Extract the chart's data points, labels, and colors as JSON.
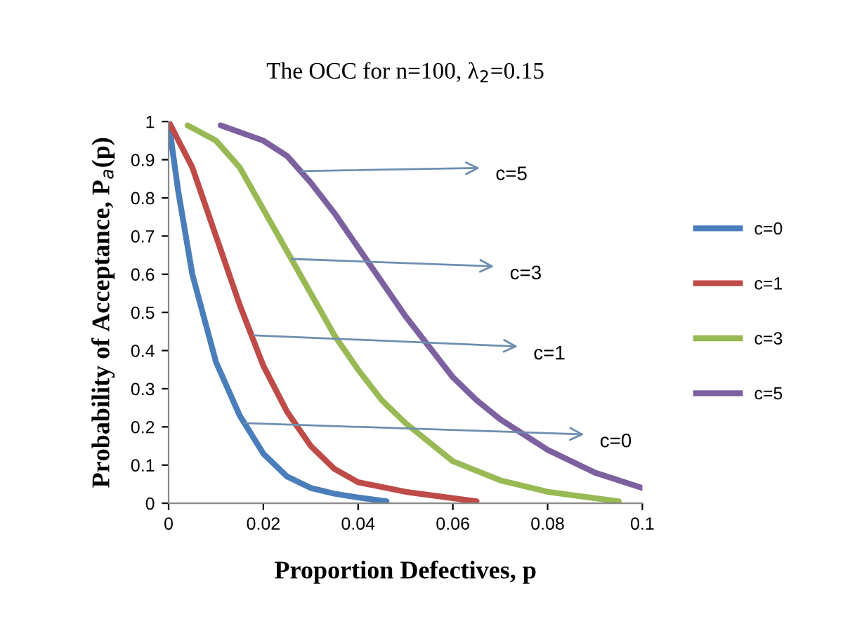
{
  "chart_data": {
    "type": "line",
    "title": "The OCC for n=100, λ$_{2}$=0.15",
    "xlabel": "Proportion Defectives, p",
    "ylabel": "Probability of Acceptance, P$_{a}$(p)",
    "xlim": [
      0,
      0.1
    ],
    "ylim": [
      0,
      1
    ],
    "xticks": [
      0,
      0.02,
      0.04,
      0.06,
      0.08,
      0.1
    ],
    "yticks": [
      0,
      0.1,
      0.2,
      0.3,
      0.4,
      0.5,
      0.6,
      0.7,
      0.8,
      0.9,
      1
    ],
    "grid": false,
    "legend": "right",
    "marker": "none",
    "line_style": "solid",
    "series": [
      {
        "name": "c=0",
        "color": "#4a7ebb",
        "x": [
          0,
          0.002,
          0.005,
          0.01,
          0.015,
          0.02,
          0.025,
          0.03,
          0.035,
          0.04,
          0.046
        ],
        "values": [
          1,
          0.82,
          0.6,
          0.37,
          0.23,
          0.13,
          0.07,
          0.04,
          0.025,
          0.015,
          0.005
        ]
      },
      {
        "name": "c=1",
        "color": "#be4b48",
        "x": [
          0,
          0.005,
          0.01,
          0.015,
          0.02,
          0.025,
          0.03,
          0.035,
          0.04,
          0.05,
          0.065
        ],
        "values": [
          1,
          0.88,
          0.7,
          0.52,
          0.36,
          0.24,
          0.15,
          0.09,
          0.055,
          0.03,
          0.005
        ]
      },
      {
        "name": "c=3",
        "color": "#98b954",
        "x": [
          0.004,
          0.01,
          0.015,
          0.02,
          0.025,
          0.03,
          0.035,
          0.04,
          0.045,
          0.05,
          0.06,
          0.07,
          0.08,
          0.095
        ],
        "values": [
          0.99,
          0.95,
          0.88,
          0.77,
          0.66,
          0.55,
          0.44,
          0.35,
          0.27,
          0.21,
          0.11,
          0.06,
          0.03,
          0.005
        ]
      },
      {
        "name": "c=5",
        "color": "#7d60a0",
        "x": [
          0.011,
          0.02,
          0.025,
          0.03,
          0.035,
          0.04,
          0.045,
          0.05,
          0.055,
          0.06,
          0.065,
          0.07,
          0.08,
          0.09,
          0.1
        ],
        "values": [
          0.99,
          0.95,
          0.91,
          0.84,
          0.76,
          0.67,
          0.58,
          0.49,
          0.41,
          0.33,
          0.27,
          0.22,
          0.14,
          0.08,
          0.04
        ]
      }
    ],
    "annotations": [
      {
        "text": "c=5",
        "x": 0.028,
        "y": 0.87
      },
      {
        "text": "c=3",
        "x": 0.026,
        "y": 0.64
      },
      {
        "text": "c=1",
        "x": 0.018,
        "y": 0.44
      },
      {
        "text": "c=0",
        "x": 0.016,
        "y": 0.21
      }
    ]
  }
}
